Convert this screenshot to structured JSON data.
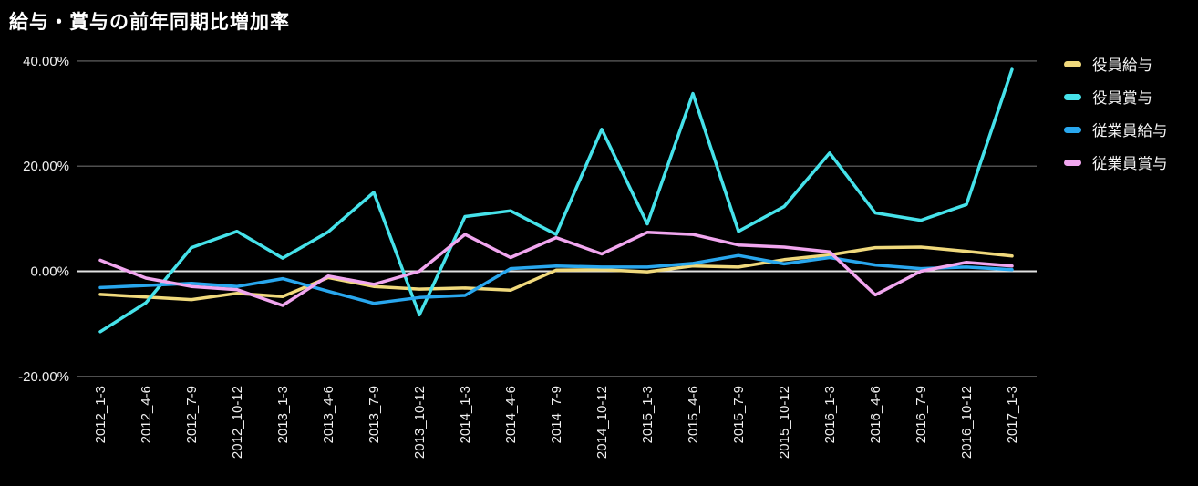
{
  "chart_data": {
    "type": "line",
    "title": "給与・賞与の前年同期比増加率",
    "categories": [
      "2012_1-3",
      "2012_4-6",
      "2012_7-9",
      "2012_10-12",
      "2013_1-3",
      "2013_4-6",
      "2013_7-9",
      "2013_10-12",
      "2014_1-3",
      "2014_4-6",
      "2014_7-9",
      "2014_10-12",
      "2015_1-3",
      "2015_4-6",
      "2015_7-9",
      "2015_10-12",
      "2016_1-3",
      "2016_4-6",
      "2016_7-9",
      "2016_10-12",
      "2017_1-3"
    ],
    "series": [
      {
        "name": "役員給与",
        "color": "#f0d97c",
        "values": [
          -4.4,
          -4.9,
          -5.4,
          -4.2,
          -4.8,
          -1.2,
          -2.9,
          -3.4,
          -3.2,
          -3.6,
          0.2,
          0.3,
          -0.1,
          1.0,
          0.8,
          2.2,
          3.1,
          4.5,
          4.6,
          3.8,
          2.9
        ]
      },
      {
        "name": "役員賞与",
        "color": "#46e2ea",
        "values": [
          -11.5,
          -6.0,
          4.5,
          7.6,
          2.5,
          7.5,
          15.0,
          -8.3,
          10.4,
          11.5,
          7.0,
          27.0,
          9.0,
          33.8,
          7.6,
          12.3,
          22.5,
          11.1,
          9.7,
          12.7,
          38.4
        ]
      },
      {
        "name": "従業員給与",
        "color": "#29a7ee",
        "values": [
          -3.1,
          -2.7,
          -2.3,
          -2.9,
          -1.4,
          -3.8,
          -6.1,
          -5.0,
          -4.6,
          0.5,
          1.0,
          0.8,
          0.8,
          1.5,
          3.0,
          1.4,
          2.6,
          1.2,
          0.5,
          0.8,
          0.3
        ]
      },
      {
        "name": "従業員賞与",
        "color": "#f1a6ef",
        "values": [
          2.1,
          -1.3,
          -2.9,
          -3.5,
          -6.5,
          -0.9,
          -2.5,
          0.0,
          7.0,
          2.6,
          6.4,
          3.3,
          7.4,
          7.0,
          5.0,
          4.6,
          3.7,
          -4.5,
          0.0,
          1.7,
          1.0
        ]
      }
    ],
    "y_axis": {
      "ticks": [
        "40.00%",
        "20.00%",
        "0.00%",
        "-20.00%"
      ],
      "tick_values": [
        40,
        20,
        0,
        -20
      ],
      "min": -20,
      "max": 40
    },
    "grid": true,
    "legend_position": "right",
    "colors": {
      "background": "#000000",
      "grid_line": "#4f4f4f",
      "zero_line": "#e2e2e2",
      "text": "#f0f0f0"
    }
  }
}
